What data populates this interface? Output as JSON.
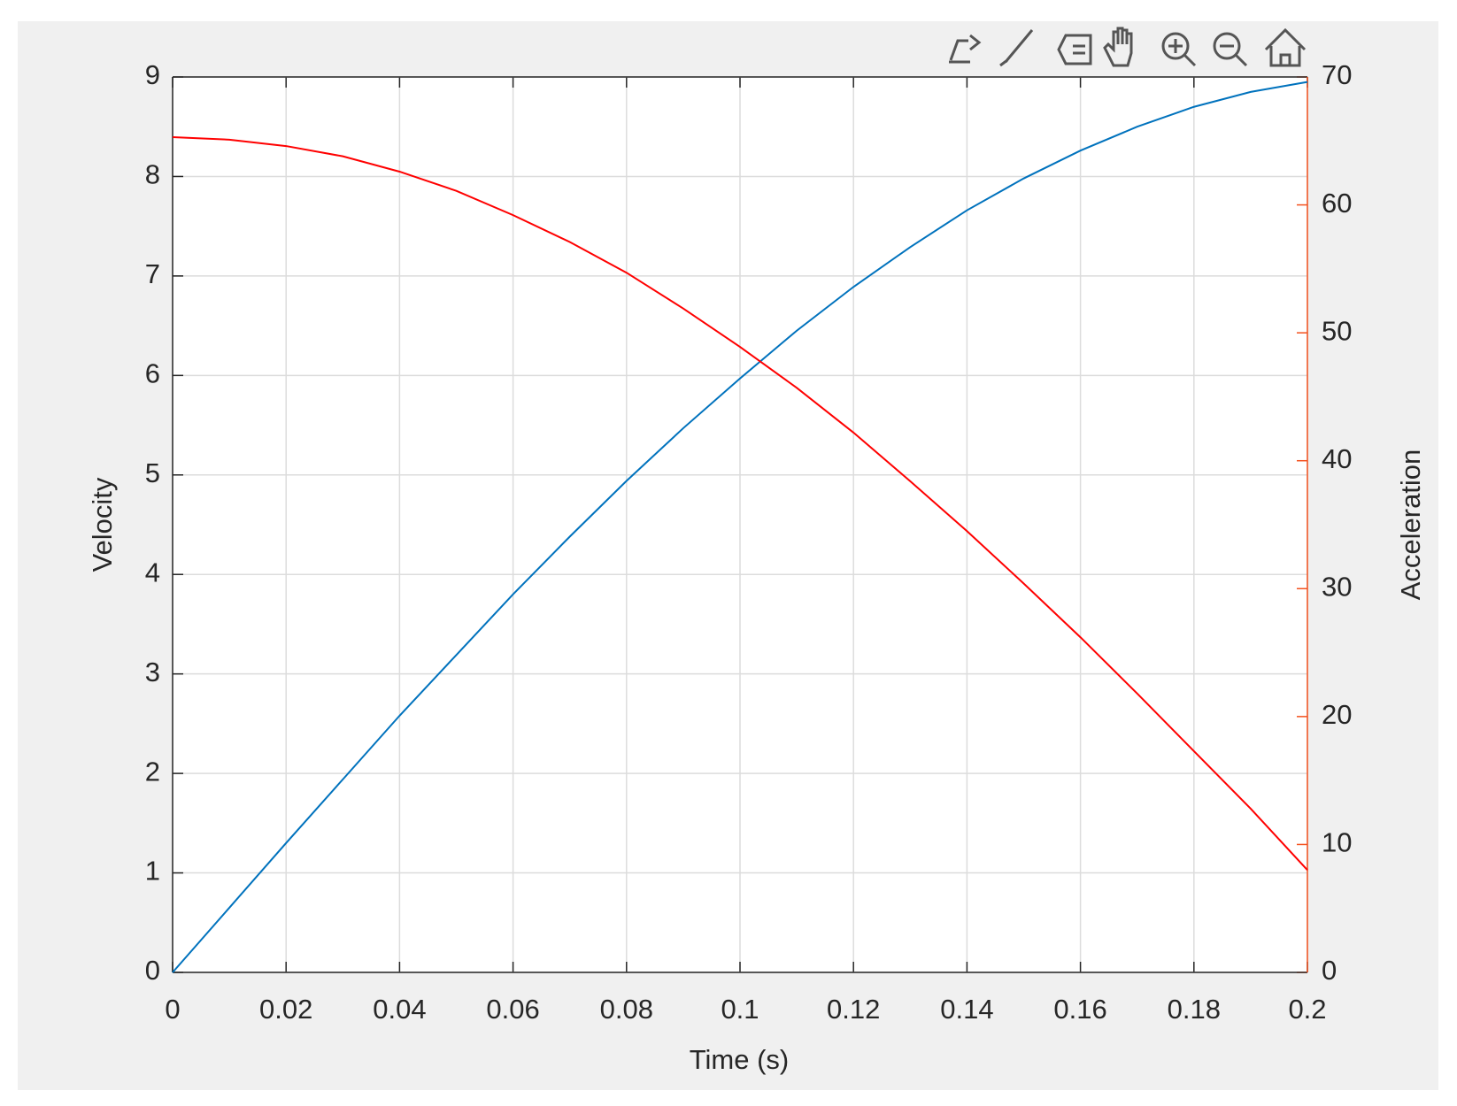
{
  "chart_data": {
    "type": "line",
    "x_label": "Time (s)",
    "y_label": "Velocity",
    "y2_label": "Acceleration",
    "x": [
      0,
      0.01,
      0.02,
      0.03,
      0.04,
      0.05,
      0.06,
      0.07,
      0.08,
      0.09,
      0.1,
      0.11,
      0.12,
      0.13,
      0.14,
      0.15,
      0.16,
      0.17,
      0.18,
      0.19,
      0.2
    ],
    "series": [
      {
        "name": "Velocity",
        "color": "#0072bd",
        "axis": "y",
        "values": [
          0,
          0.65,
          1.3,
          1.94,
          2.58,
          3.19,
          3.8,
          4.38,
          4.94,
          5.47,
          5.97,
          6.45,
          6.89,
          7.29,
          7.66,
          7.98,
          8.26,
          8.5,
          8.7,
          8.85,
          8.95
        ]
      },
      {
        "name": "Acceleration",
        "color": "#ff0000",
        "axis": "y2",
        "values": [
          65.3,
          65.1,
          64.6,
          63.8,
          62.6,
          61.1,
          59.2,
          57.1,
          54.7,
          51.9,
          48.9,
          45.7,
          42.2,
          38.4,
          34.5,
          30.4,
          26.2,
          21.8,
          17.3,
          12.8,
          8.0
        ]
      }
    ],
    "xlim": [
      0,
      0.2
    ],
    "xticks": [
      0,
      0.02,
      0.04,
      0.06,
      0.08,
      0.1,
      0.12,
      0.14,
      0.16,
      0.18,
      0.2
    ],
    "ylim": [
      0,
      9
    ],
    "yticks": [
      0,
      1,
      2,
      3,
      4,
      5,
      6,
      7,
      8,
      9
    ],
    "y2lim": [
      0,
      70
    ],
    "y2ticks": [
      0,
      10,
      20,
      30,
      40,
      50,
      60,
      70
    ],
    "y2_color": "#f4511e",
    "grid": true
  }
}
